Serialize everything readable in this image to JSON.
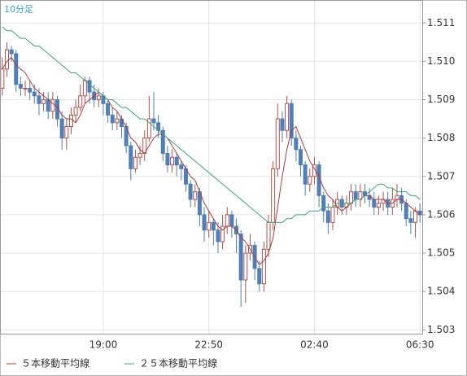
{
  "chart_data": {
    "type": "candlestick",
    "subtitle": "10分足",
    "categories": [
      null,
      null,
      null,
      null,
      null,
      null,
      null,
      null,
      null,
      null,
      null,
      null,
      null,
      null,
      null,
      null,
      null,
      null,
      null,
      null,
      null,
      null,
      "19:00",
      null,
      null,
      null,
      null,
      null,
      null,
      null,
      null,
      null,
      null,
      null,
      null,
      null,
      null,
      null,
      null,
      null,
      null,
      null,
      null,
      null,
      null,
      "22:50",
      null,
      null,
      null,
      null,
      null,
      null,
      null,
      null,
      null,
      null,
      null,
      null,
      null,
      null,
      null,
      null,
      null,
      null,
      null,
      null,
      null,
      null,
      "02:40",
      null,
      null,
      null,
      null,
      null,
      null,
      null,
      null,
      null,
      null,
      null,
      null,
      null,
      null,
      null,
      null,
      null,
      null,
      null,
      null,
      null,
      null,
      "06:30"
    ],
    "open": [
      1.5093,
      1.5098,
      1.5103,
      1.5102,
      1.5094,
      1.5093,
      1.5093,
      1.5092,
      1.5091,
      1.5089,
      1.509,
      1.5087,
      1.509,
      1.5085,
      1.508,
      1.5083,
      1.5086,
      1.5088,
      1.5091,
      1.5095,
      1.5092,
      1.509,
      1.5091,
      1.5089,
      1.5086,
      1.5084,
      1.5085,
      1.5083,
      1.5078,
      1.5072,
      1.5075,
      1.5076,
      1.508,
      1.5085,
      1.5084,
      1.5082,
      1.5076,
      1.5073,
      1.5075,
      1.5073,
      1.5072,
      1.5068,
      1.5064,
      1.5066,
      1.506,
      1.5056,
      1.5058,
      1.5056,
      1.5053,
      1.5057,
      1.506,
      1.5057,
      1.5055,
      1.5043,
      1.505,
      1.5052,
      1.5046,
      1.5042,
      1.5051,
      1.5058,
      1.5072,
      1.5085,
      1.5082,
      1.5089,
      1.508,
      1.5077,
      1.5073,
      1.5068,
      1.507,
      1.5073,
      1.5065,
      1.5061,
      1.5058,
      1.5062,
      1.5064,
      1.5062,
      1.5063,
      1.5066,
      1.5064,
      1.5066,
      1.5065,
      1.5064,
      1.5062,
      1.5063,
      1.5064,
      1.5062,
      1.5064,
      1.5065,
      1.5063,
      1.5059,
      1.5058,
      1.5061
    ],
    "high": [
      1.5101,
      1.5105,
      1.5104,
      1.5103,
      1.5096,
      1.5095,
      1.5095,
      1.5094,
      1.5093,
      1.5092,
      1.5092,
      1.5092,
      1.5091,
      1.5087,
      1.5085,
      1.5088,
      1.509,
      1.5094,
      1.5096,
      1.5096,
      1.5094,
      1.5093,
      1.5092,
      1.509,
      1.5088,
      1.5087,
      1.5086,
      1.5084,
      1.5079,
      1.5077,
      1.5078,
      1.5082,
      1.5091,
      1.5092,
      1.5086,
      1.5083,
      1.5078,
      1.5077,
      1.5076,
      1.5074,
      1.5073,
      1.5069,
      1.5068,
      1.5067,
      1.5062,
      1.5061,
      1.5059,
      1.5058,
      1.506,
      1.5062,
      1.5061,
      1.5059,
      1.5056,
      1.5052,
      1.5055,
      1.5053,
      1.5048,
      1.5053,
      1.506,
      1.5074,
      1.5089,
      1.5087,
      1.5091,
      1.509,
      1.5082,
      1.5078,
      1.5074,
      1.5072,
      1.5075,
      1.5074,
      1.5066,
      1.5063,
      1.5064,
      1.5066,
      1.5065,
      1.5065,
      1.5068,
      1.5068,
      1.5068,
      1.5068,
      1.5067,
      1.5066,
      1.5065,
      1.5066,
      1.5066,
      1.5067,
      1.5068,
      1.5067,
      1.5064,
      1.5061,
      1.5062,
      1.5063
    ],
    "low": [
      1.5091,
      1.5096,
      1.51,
      1.5092,
      1.5091,
      1.5091,
      1.509,
      1.5089,
      1.5086,
      1.5087,
      1.5085,
      1.5085,
      1.5083,
      1.5077,
      1.5077,
      1.5081,
      1.5084,
      1.5087,
      1.5089,
      1.5089,
      1.5088,
      1.5088,
      1.5086,
      1.5084,
      1.5082,
      1.5082,
      1.508,
      1.5076,
      1.5069,
      1.5071,
      1.5073,
      1.5074,
      1.5079,
      1.5082,
      1.508,
      1.5074,
      1.5071,
      1.5071,
      1.507,
      1.5069,
      1.5066,
      1.5062,
      1.5062,
      1.5057,
      1.5053,
      1.5054,
      1.5052,
      1.505,
      1.5051,
      1.5055,
      1.5054,
      1.505,
      1.5036,
      1.5037,
      1.5048,
      1.5043,
      1.504,
      1.504,
      1.5049,
      1.5056,
      1.507,
      1.5079,
      1.508,
      1.5078,
      1.5074,
      1.507,
      1.5065,
      1.5066,
      1.5068,
      1.5062,
      1.5058,
      1.5055,
      1.5056,
      1.506,
      1.506,
      1.506,
      1.5061,
      1.5062,
      1.5062,
      1.5063,
      1.5062,
      1.506,
      1.506,
      1.5061,
      1.506,
      1.506,
      1.5062,
      1.5061,
      1.5057,
      1.5055,
      1.5054,
      1.5058
    ],
    "close": [
      1.5098,
      1.5103,
      1.5102,
      1.5094,
      1.5093,
      1.5093,
      1.5092,
      1.5091,
      1.5089,
      1.509,
      1.5087,
      1.509,
      1.5085,
      1.508,
      1.5083,
      1.5086,
      1.5088,
      1.5091,
      1.5095,
      1.5092,
      1.509,
      1.5091,
      1.5089,
      1.5086,
      1.5084,
      1.5085,
      1.5083,
      1.5078,
      1.5072,
      1.5075,
      1.5076,
      1.508,
      1.5085,
      1.5084,
      1.5082,
      1.5076,
      1.5073,
      1.5075,
      1.5073,
      1.5072,
      1.5068,
      1.5064,
      1.5066,
      1.506,
      1.5056,
      1.5058,
      1.5056,
      1.5053,
      1.5057,
      1.506,
      1.5057,
      1.5055,
      1.5043,
      1.505,
      1.5052,
      1.5046,
      1.5042,
      1.5051,
      1.5058,
      1.5072,
      1.5085,
      1.5082,
      1.5089,
      1.508,
      1.5077,
      1.5073,
      1.5068,
      1.507,
      1.5073,
      1.5065,
      1.5061,
      1.5058,
      1.5062,
      1.5064,
      1.5062,
      1.5063,
      1.5066,
      1.5064,
      1.5066,
      1.5065,
      1.5064,
      1.5062,
      1.5063,
      1.5064,
      1.5062,
      1.5064,
      1.5065,
      1.5063,
      1.5059,
      1.5058,
      1.5061,
      1.506
    ],
    "up_color": "#b5504a",
    "down_color": "#4f7fb8",
    "series": [
      {
        "name": "５本移動平均線",
        "color": "#b03a3a",
        "values": [
          1.5098,
          1.51,
          1.5101,
          1.5099,
          1.5098,
          1.5097,
          1.5095,
          1.5093,
          1.5092,
          1.5091,
          1.509,
          1.5089,
          1.5088,
          1.5086,
          1.5085,
          1.5085,
          1.5084,
          1.5086,
          1.5089,
          1.509,
          1.5091,
          1.5092,
          1.5091,
          1.509,
          1.5088,
          1.5087,
          1.5085,
          1.5083,
          1.508,
          1.5079,
          1.5077,
          1.5076,
          1.5078,
          1.508,
          1.5081,
          1.5081,
          1.508,
          1.5078,
          1.5076,
          1.5074,
          1.5072,
          1.507,
          1.5069,
          1.5066,
          1.5063,
          1.5061,
          1.5059,
          1.5057,
          1.5056,
          1.5057,
          1.5057,
          1.5056,
          1.5054,
          1.5053,
          1.5051,
          1.5049,
          1.5047,
          1.5048,
          1.505,
          1.5054,
          1.5062,
          1.507,
          1.5077,
          1.5082,
          1.5083,
          1.508,
          1.5077,
          1.5074,
          1.5072,
          1.507,
          1.5067,
          1.5065,
          1.5064,
          1.5062,
          1.5061,
          1.5062,
          1.5063,
          1.5064,
          1.5064,
          1.5065,
          1.5065,
          1.5064,
          1.5064,
          1.5064,
          1.5063,
          1.5063,
          1.5064,
          1.5064,
          1.5063,
          1.5062,
          1.5061,
          1.506
        ]
      },
      {
        "name": "２５本移動平均線",
        "color": "#3aa57a",
        "values": [
          1.5109,
          1.5108,
          1.5108,
          1.5107,
          1.5106,
          1.5106,
          1.5105,
          1.5104,
          1.5104,
          1.5103,
          1.5102,
          1.5101,
          1.51,
          1.5099,
          1.5098,
          1.5097,
          1.5097,
          1.5096,
          1.5095,
          1.5094,
          1.5093,
          1.5092,
          1.5091,
          1.509,
          1.509,
          1.5089,
          1.5088,
          1.5088,
          1.5087,
          1.5086,
          1.5085,
          1.5085,
          1.5084,
          1.5083,
          1.5082,
          1.5081,
          1.508,
          1.5079,
          1.5078,
          1.5077,
          1.5076,
          1.5075,
          1.5074,
          1.5073,
          1.5072,
          1.5071,
          1.507,
          1.5069,
          1.5068,
          1.5067,
          1.5066,
          1.5065,
          1.5064,
          1.5063,
          1.5062,
          1.5061,
          1.506,
          1.5059,
          1.5058,
          1.5058,
          1.5058,
          1.5058,
          1.5059,
          1.5059,
          1.506,
          1.506,
          1.506,
          1.5061,
          1.5061,
          1.5061,
          1.5062,
          1.5062,
          1.5062,
          1.5063,
          1.5063,
          1.5063,
          1.5063,
          1.5064,
          1.5064,
          1.5065,
          1.5066,
          1.5067,
          1.5068,
          1.5068,
          1.5067,
          1.5067,
          1.5066,
          1.5066,
          1.5066,
          1.5065,
          1.5065,
          1.5064
        ]
      }
    ],
    "ylim": [
      1.5029,
      1.5116
    ],
    "yticks": [
      1.503,
      1.504,
      1.505,
      1.506,
      1.507,
      1.508,
      1.509,
      {
        "value": 1.51,
        "label": "1.510"
      },
      1.511
    ],
    "grid": true
  }
}
